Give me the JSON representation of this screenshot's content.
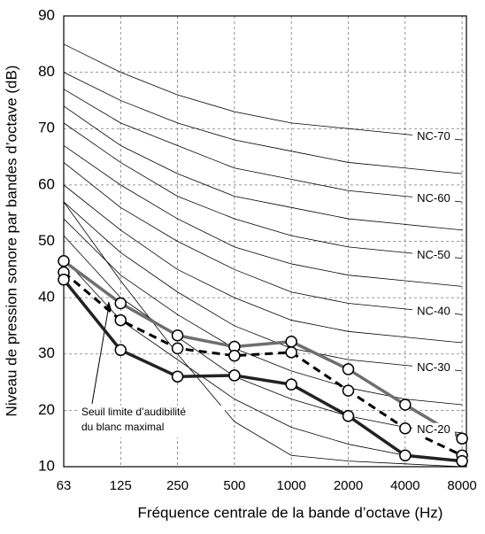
{
  "chart_data": {
    "type": "line",
    "x_label": "Fréquence centrale de la bande d’octave (Hz)",
    "y_label": "Niveau de pression sonore par bandes d’octave (dB)",
    "categories": [
      "63",
      "125",
      "250",
      "500",
      "1000",
      "2000",
      "4000",
      "8000"
    ],
    "ylim": [
      10,
      90
    ],
    "yticks": [
      10,
      20,
      30,
      40,
      50,
      60,
      70,
      80,
      90
    ],
    "grid": true,
    "annotation": [
      "Seuil limite d’audibilité",
      "du blanc maximal"
    ],
    "series": [
      {
        "color": "#000000",
        "width": 0.8,
        "values": [
          47,
          36,
          29,
          22,
          17,
          14,
          12,
          11
        ]
      },
      {
        "name": "NC-20",
        "color": "#000000",
        "width": 0.8,
        "values": [
          51,
          40,
          33,
          26,
          22,
          19,
          17,
          16
        ]
      },
      {
        "color": "#000000",
        "width": 0.8,
        "values": [
          54,
          44,
          37,
          31,
          27,
          24,
          22,
          21
        ]
      },
      {
        "name": "NC-30",
        "color": "#000000",
        "width": 0.8,
        "values": [
          57,
          48,
          41,
          35,
          31,
          29,
          28,
          27
        ]
      },
      {
        "color": "#000000",
        "width": 0.8,
        "values": [
          60,
          52,
          45,
          40,
          36,
          34,
          33,
          32
        ]
      },
      {
        "name": "NC-40",
        "color": "#000000",
        "width": 0.8,
        "values": [
          64,
          56,
          50,
          45,
          41,
          39,
          38,
          37
        ]
      },
      {
        "color": "#000000",
        "width": 0.8,
        "values": [
          67,
          60,
          54,
          49,
          46,
          44,
          43,
          42
        ]
      },
      {
        "name": "NC-50",
        "color": "#000000",
        "width": 0.8,
        "values": [
          71,
          64,
          58,
          54,
          51,
          49,
          48,
          47
        ]
      },
      {
        "color": "#000000",
        "width": 0.8,
        "values": [
          74,
          67,
          62,
          58,
          56,
          54,
          53,
          52
        ]
      },
      {
        "name": "NC-60",
        "color": "#000000",
        "width": 0.8,
        "values": [
          77,
          71,
          67,
          63,
          61,
          59,
          58,
          57
        ]
      },
      {
        "color": "#000000",
        "width": 0.8,
        "values": [
          80,
          75,
          71,
          68,
          66,
          64,
          63,
          62
        ]
      },
      {
        "name": "NC-70",
        "color": "#000000",
        "width": 0.8,
        "values": [
          85,
          80,
          76,
          73,
          71,
          70,
          69,
          68
        ]
      },
      {
        "color": "#000000",
        "width": 0.8,
        "values": [
          57,
          43,
          30,
          18,
          12,
          11,
          10.5,
          10
        ]
      },
      {
        "color": "#6e6e6e",
        "width": 3.5,
        "markers": true,
        "values": [
          46.5,
          39,
          33.3,
          31.3,
          32.2,
          27.3,
          21,
          15
        ]
      },
      {
        "color": "#000000",
        "width": 3,
        "dash": "9,6",
        "markers": true,
        "values": [
          44.5,
          36,
          31,
          29.7,
          30.3,
          23.5,
          16.8,
          12
        ]
      },
      {
        "color": "#222222",
        "width": 3.5,
        "markers": true,
        "values": [
          43.2,
          30.7,
          26,
          26.2,
          24.6,
          19,
          12,
          11
        ]
      }
    ]
  }
}
